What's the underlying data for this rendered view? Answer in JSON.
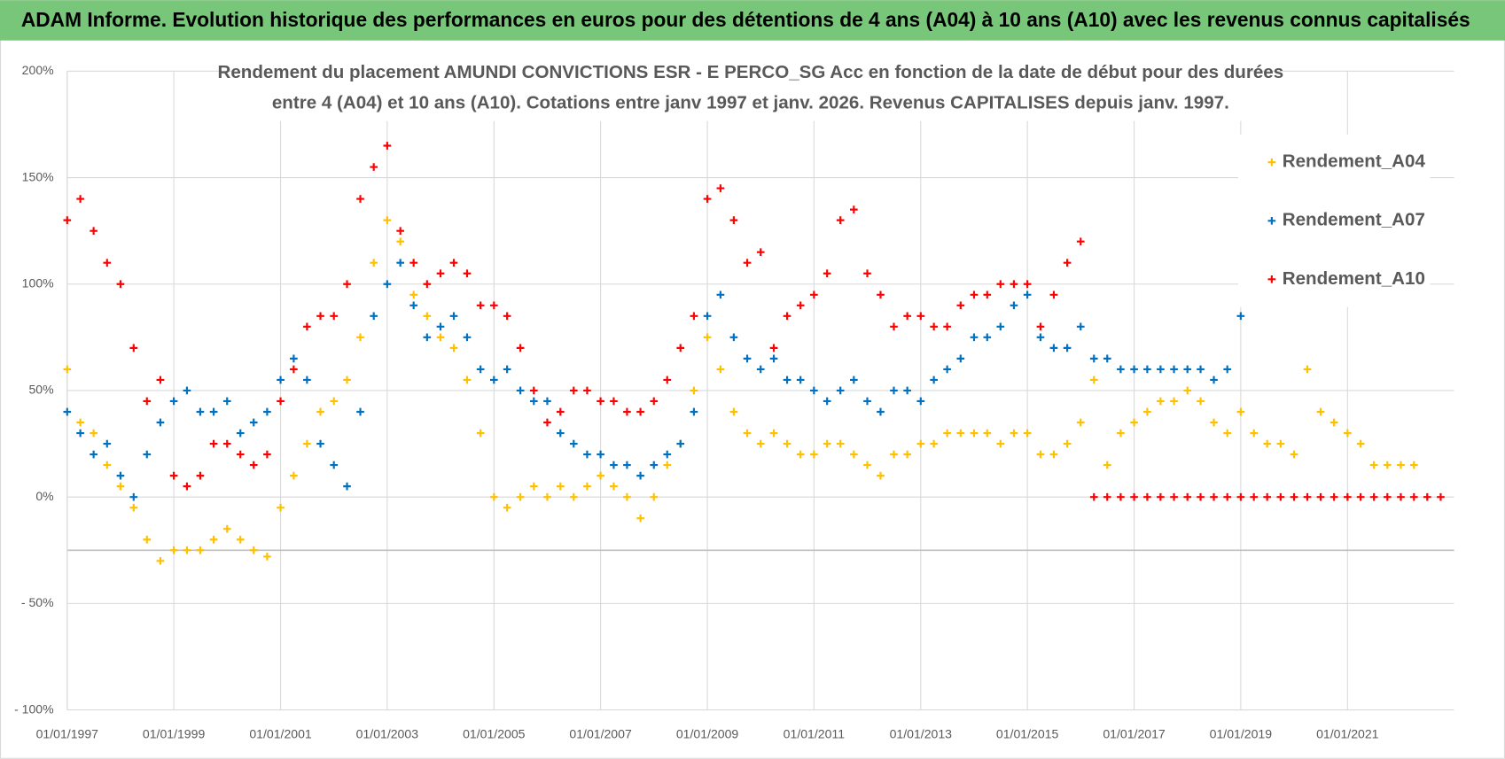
{
  "chart_data": {
    "type": "scatter",
    "title": "ADAM Informe. Evolution historique des performances en euros pour des détentions de 4 ans (A04) à 10 ans (A10) avec les revenus connus capitalisés",
    "subtitle_lines": [
      "Rendement du placement AMUNDI CONVICTIONS ESR - E PERCO_SG Acc  en fonction de la date de début pour des durées",
      "entre 4 (A04) et 10 ans (A10).  Cotations entre janv 1997 et janv. 2026. Revenus CAPITALISES depuis janv. 1997."
    ],
    "x": [
      "1997-01-01",
      "1997-04-01",
      "1997-07-01",
      "1997-10-01",
      "1998-01-01",
      "1998-04-01",
      "1998-07-01",
      "1998-10-01",
      "1999-01-01",
      "1999-04-01",
      "1999-07-01",
      "1999-10-01",
      "2000-01-01",
      "2000-04-01",
      "2000-07-01",
      "2000-10-01",
      "2001-01-01",
      "2001-04-01",
      "2001-07-01",
      "2001-10-01",
      "2002-01-01",
      "2002-04-01",
      "2002-07-01",
      "2002-10-01",
      "2003-01-01",
      "2003-04-01",
      "2003-07-01",
      "2003-10-01",
      "2004-01-01",
      "2004-04-01",
      "2004-07-01",
      "2004-10-01",
      "2005-01-01",
      "2005-04-01",
      "2005-07-01",
      "2005-10-01",
      "2006-01-01",
      "2006-04-01",
      "2006-07-01",
      "2006-10-01",
      "2007-01-01",
      "2007-04-01",
      "2007-07-01",
      "2007-10-01",
      "2008-01-01",
      "2008-04-01",
      "2008-07-01",
      "2008-10-01",
      "2009-01-01",
      "2009-04-01",
      "2009-07-01",
      "2009-10-01",
      "2010-01-01",
      "2010-04-01",
      "2010-07-01",
      "2010-10-01",
      "2011-01-01",
      "2011-04-01",
      "2011-07-01",
      "2011-10-01",
      "2012-01-01",
      "2012-04-01",
      "2012-07-01",
      "2012-10-01",
      "2013-01-01",
      "2013-04-01",
      "2013-07-01",
      "2013-10-01",
      "2014-01-01",
      "2014-04-01",
      "2014-07-01",
      "2014-10-01",
      "2015-01-01",
      "2015-04-01",
      "2015-07-01",
      "2015-10-01",
      "2016-01-01",
      "2016-04-01",
      "2016-07-01",
      "2016-10-01",
      "2017-01-01",
      "2017-04-01",
      "2017-07-01",
      "2017-10-01",
      "2018-01-01",
      "2018-04-01",
      "2018-07-01",
      "2018-10-01",
      "2019-01-01",
      "2019-04-01",
      "2019-07-01",
      "2019-10-01",
      "2020-01-01",
      "2020-04-01",
      "2020-07-01",
      "2020-10-01",
      "2021-01-01",
      "2021-04-01",
      "2021-07-01",
      "2021-10-01",
      "2022-01-01",
      "2022-04-01",
      "2022-07-01",
      "2022-10-01"
    ],
    "series": [
      {
        "name": "Rendement_A04",
        "color": "#ffc000",
        "values": [
          60,
          35,
          30,
          15,
          5,
          -5,
          -20,
          -30,
          -25,
          -25,
          -25,
          -20,
          -15,
          -20,
          -25,
          -28,
          -5,
          10,
          25,
          40,
          45,
          55,
          75,
          110,
          130,
          120,
          95,
          85,
          75,
          70,
          55,
          30,
          0,
          -5,
          0,
          5,
          0,
          5,
          0,
          5,
          10,
          5,
          0,
          -10,
          0,
          15,
          25,
          50,
          75,
          60,
          40,
          30,
          25,
          30,
          25,
          20,
          20,
          25,
          25,
          20,
          15,
          10,
          20,
          20,
          25,
          25,
          30,
          30,
          30,
          30,
          25,
          30,
          30,
          20,
          20,
          25,
          35,
          55,
          15,
          30,
          35,
          40,
          45,
          45,
          50,
          45,
          35,
          30,
          40,
          30,
          25,
          25,
          20,
          60,
          40,
          35,
          30,
          25,
          15,
          15,
          15,
          15,
          null,
          null
        ]
      },
      {
        "name": "Rendement_A07",
        "color": "#0070c0",
        "values": [
          40,
          30,
          20,
          25,
          10,
          0,
          20,
          35,
          45,
          50,
          40,
          40,
          45,
          30,
          35,
          40,
          55,
          65,
          55,
          25,
          15,
          5,
          40,
          85,
          100,
          110,
          90,
          75,
          80,
          85,
          75,
          60,
          55,
          60,
          50,
          45,
          45,
          30,
          25,
          20,
          20,
          15,
          15,
          10,
          15,
          20,
          25,
          40,
          85,
          95,
          75,
          65,
          60,
          65,
          55,
          55,
          50,
          45,
          50,
          55,
          45,
          40,
          50,
          50,
          45,
          55,
          60,
          65,
          75,
          75,
          80,
          90,
          95,
          75,
          70,
          70,
          80,
          65,
          65,
          60,
          60,
          60,
          60,
          60,
          60,
          60,
          55,
          60,
          85,
          null,
          null,
          null,
          null,
          null,
          null,
          null,
          null,
          null,
          null,
          null,
          null,
          null,
          null,
          null
        ]
      },
      {
        "name": "Rendement_A10",
        "color": "#ff0000",
        "values": [
          130,
          140,
          125,
          110,
          100,
          70,
          45,
          55,
          10,
          5,
          10,
          25,
          25,
          20,
          15,
          20,
          45,
          60,
          80,
          85,
          85,
          100,
          140,
          155,
          165,
          125,
          110,
          100,
          105,
          110,
          105,
          90,
          90,
          85,
          70,
          50,
          35,
          40,
          50,
          50,
          45,
          45,
          40,
          40,
          45,
          55,
          70,
          85,
          140,
          145,
          130,
          110,
          115,
          70,
          85,
          90,
          95,
          105,
          130,
          135,
          105,
          95,
          80,
          85,
          85,
          80,
          80,
          90,
          95,
          95,
          100,
          100,
          100,
          80,
          95,
          110,
          120,
          0,
          0,
          0,
          0,
          0,
          0,
          0,
          0,
          0,
          0,
          0,
          0,
          0,
          0,
          0,
          0,
          0,
          0,
          0,
          0,
          0,
          0,
          0,
          0,
          0,
          0,
          0
        ]
      }
    ],
    "xlim": [
      "1997-01-01",
      "2023-01-01"
    ],
    "xticks": [
      {
        "value": "1997-01-01",
        "label": "01/01/1997"
      },
      {
        "value": "1999-01-01",
        "label": "01/01/1999"
      },
      {
        "value": "2001-01-01",
        "label": "01/01/2001"
      },
      {
        "value": "2003-01-01",
        "label": "01/01/2003"
      },
      {
        "value": "2005-01-01",
        "label": "01/01/2005"
      },
      {
        "value": "2007-01-01",
        "label": "01/01/2007"
      },
      {
        "value": "2009-01-01",
        "label": "01/01/2009"
      },
      {
        "value": "2011-01-01",
        "label": "01/01/2011"
      },
      {
        "value": "2013-01-01",
        "label": "01/01/2013"
      },
      {
        "value": "2015-01-01",
        "label": "01/01/2015"
      },
      {
        "value": "2017-01-01",
        "label": "01/01/2017"
      },
      {
        "value": "2019-01-01",
        "label": "01/01/2019"
      },
      {
        "value": "2021-01-01",
        "label": "01/01/2021"
      }
    ],
    "ylim": [
      -100,
      200
    ],
    "yticks": [
      {
        "value": -100,
        "label": "- 100%"
      },
      {
        "value": -50,
        "label": "- 50%"
      },
      {
        "value": 0,
        "label": "0%"
      },
      {
        "value": 50,
        "label": "50%"
      },
      {
        "value": 100,
        "label": "100%"
      },
      {
        "value": 150,
        "label": "150%"
      },
      {
        "value": 200,
        "label": "200%"
      }
    ],
    "x_axis_crossing": -25,
    "grid": true,
    "legend_position": "top-right"
  }
}
